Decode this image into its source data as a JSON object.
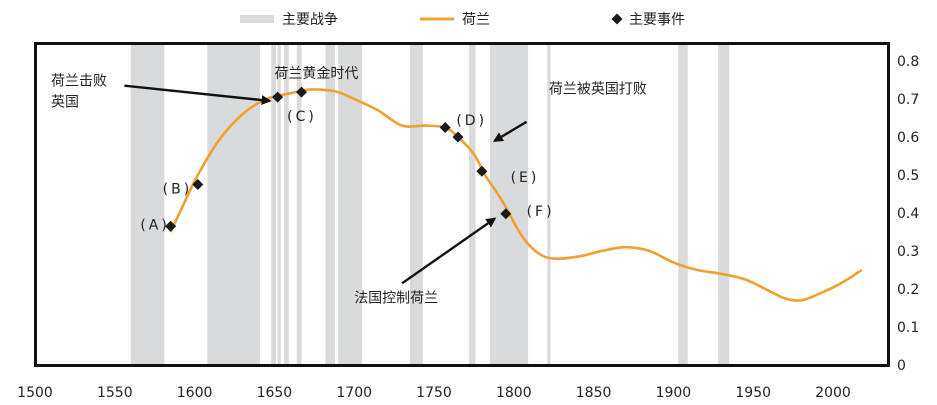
{
  "chart_data": {
    "type": "line",
    "xlim": [
      1500,
      2020
    ],
    "ylim": [
      0,
      0.8
    ],
    "x_ticks": [
      1500,
      1550,
      1600,
      1650,
      1700,
      1750,
      1800,
      1850,
      1900,
      1950,
      2000
    ],
    "y_ticks": [
      "0",
      "0.1",
      "0.2",
      "0.3",
      "0.4",
      "0.5",
      "0.6",
      "0.7",
      "0.8"
    ],
    "y_tick_values": [
      0,
      0.1,
      0.2,
      0.3,
      0.4,
      0.5,
      0.6,
      0.7,
      0.8
    ],
    "y_axis_side": "right",
    "grid": false,
    "legend": {
      "placement": "top",
      "items": [
        {
          "label": "主要战争",
          "marker": "band"
        },
        {
          "label": "荷兰",
          "marker": "line"
        },
        {
          "label": "主要事件",
          "marker": "diamond"
        }
      ]
    },
    "colors": {
      "series": "#F0A030",
      "bands": "#D9DADC",
      "events": "#1A1A1A",
      "axis": "#111111"
    },
    "war_periods": [
      [
        1560,
        1581
      ],
      [
        1608,
        1641
      ],
      [
        1648,
        1651
      ],
      [
        1652,
        1654
      ],
      [
        1656,
        1659
      ],
      [
        1664,
        1667
      ],
      [
        1682,
        1688
      ],
      [
        1690,
        1705
      ],
      [
        1735,
        1743
      ],
      [
        1772,
        1776
      ],
      [
        1785,
        1809
      ],
      [
        1821,
        1823
      ],
      [
        1903,
        1909
      ],
      [
        1928,
        1935
      ]
    ],
    "series": [
      {
        "name": "荷兰",
        "x": [
          1585,
          1595,
          1602,
          1615,
          1630,
          1645,
          1660,
          1672,
          1688,
          1700,
          1715,
          1730,
          1745,
          1757,
          1765,
          1775,
          1782,
          1790,
          1795,
          1805,
          1815,
          1825,
          1840,
          1855,
          1870,
          1885,
          1900,
          1915,
          1930,
          1945,
          1960,
          1970,
          1980,
          1990,
          2005,
          2018
        ],
        "values": [
          0.35,
          0.44,
          0.5,
          0.59,
          0.66,
          0.7,
          0.715,
          0.725,
          0.72,
          0.7,
          0.67,
          0.63,
          0.63,
          0.625,
          0.6,
          0.555,
          0.5,
          0.45,
          0.415,
          0.34,
          0.295,
          0.28,
          0.285,
          0.3,
          0.31,
          0.3,
          0.27,
          0.25,
          0.24,
          0.225,
          0.195,
          0.175,
          0.17,
          0.185,
          0.215,
          0.25
        ]
      }
    ],
    "events": [
      {
        "label": "(A)",
        "x": 1585,
        "y": 0.365
      },
      {
        "label": "(B)",
        "x": 1602,
        "y": 0.475
      },
      {
        "label": "(C)",
        "x": 1652,
        "y": 0.705
      },
      {
        "label": "(C)",
        "x": 1667,
        "y": 0.718
      },
      {
        "label": "(D)",
        "x": 1757,
        "y": 0.625
      },
      {
        "label": "(D)",
        "x": 1765,
        "y": 0.6
      },
      {
        "label": "(E)",
        "x": 1780,
        "y": 0.51
      },
      {
        "label": "(F)",
        "x": 1795,
        "y": 0.398
      }
    ],
    "event_labels": [
      {
        "text": "(A)",
        "x": 1566,
        "y": 0.37
      },
      {
        "text": "(B)",
        "x": 1580,
        "y": 0.465
      },
      {
        "text": "(C)",
        "x": 1658,
        "y": 0.655
      },
      {
        "text": "(D)",
        "x": 1764,
        "y": 0.645
      },
      {
        "text": "(E)",
        "x": 1798,
        "y": 0.495
      },
      {
        "text": "(F)",
        "x": 1808,
        "y": 0.405
      }
    ],
    "annotations": [
      {
        "text": "荷兰击败",
        "x": 1510,
        "y": 0.735,
        "arrow_from": [
          1556,
          0.735
        ],
        "arrow_to": [
          1647,
          0.695
        ]
      },
      {
        "text": "英国",
        "x": 1510,
        "y": 0.68
      },
      {
        "text": "荷兰黄金时代",
        "x": 1650,
        "y": 0.755
      },
      {
        "text": "荷兰被英国打败",
        "x": 1822,
        "y": 0.715,
        "arrow_from": [
          1808,
          0.64
        ],
        "arrow_to": [
          1788,
          0.59
        ]
      },
      {
        "text": "法国控制荷兰",
        "x": 1700,
        "y": 0.165,
        "arrow_from": [
          1730,
          0.215
        ],
        "arrow_to": [
          1788,
          0.385
        ]
      }
    ]
  }
}
